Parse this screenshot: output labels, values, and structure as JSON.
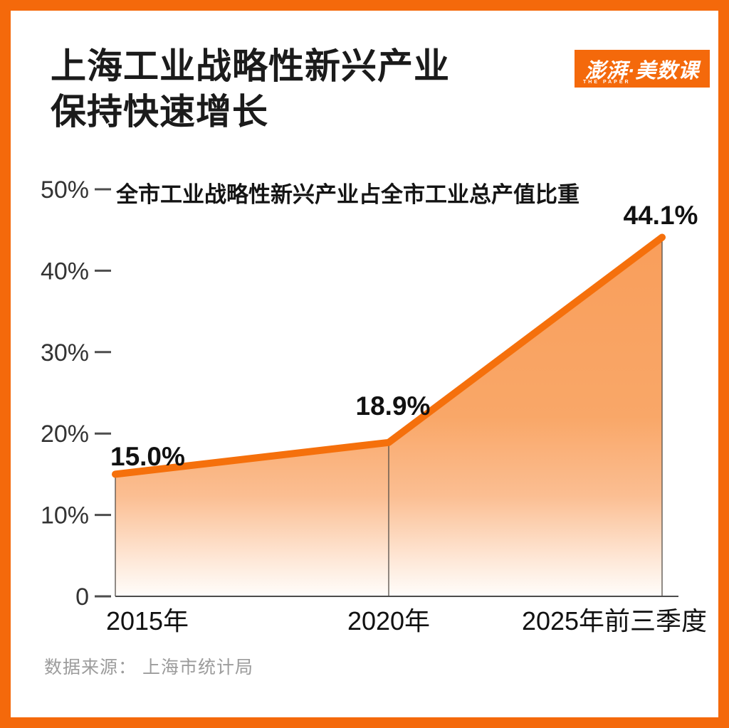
{
  "header": {
    "title_line1": "上海工业战略性新兴产业",
    "title_line2": "保持快速增长"
  },
  "logo": {
    "main_text": "澎湃·美数课",
    "sub_text": "THE PAPER"
  },
  "chart_data": {
    "type": "area",
    "title": "全市工业战略性新兴产业占全市工业总产值比重",
    "categories": [
      "2015年",
      "2020年",
      "2025年前三季度"
    ],
    "values": [
      15.0,
      18.9,
      44.1
    ],
    "value_labels": [
      "15.0%",
      "18.9%",
      "44.1%"
    ],
    "ylim": [
      0,
      50
    ],
    "y_tick_values": [
      0,
      10,
      20,
      30,
      40,
      50
    ],
    "y_tick_labels": [
      "0",
      "10%",
      "20%",
      "30%",
      "40%",
      "50%"
    ],
    "grid": false,
    "legend": false,
    "colors": {
      "line": "#F5700C",
      "fill_top": "#F99E5B",
      "fill_mid": "#F9A768",
      "fill_low": "#FBBE92",
      "fill_bottom": "#FFFDFB",
      "axis": "#4C4C4C",
      "guide": "#544E48",
      "y_tick_text": "#333333",
      "x_tick_text": "#111111",
      "value_text": "#111111"
    }
  },
  "source": {
    "text": "数据来源： 上海市统计局"
  },
  "frame": {
    "color": "#F4690B"
  }
}
